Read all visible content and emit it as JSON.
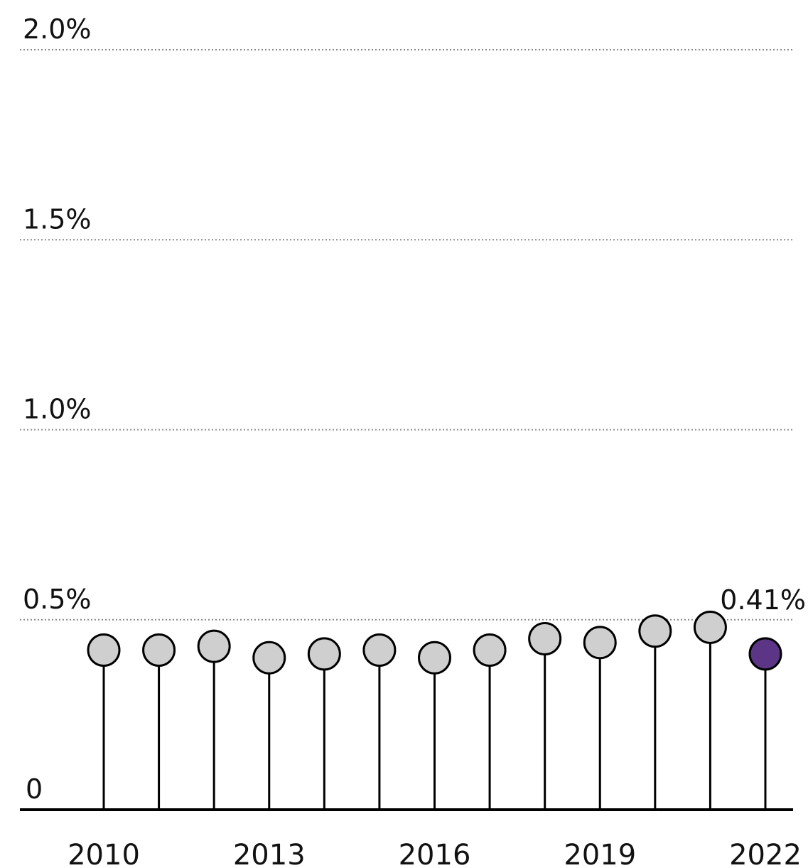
{
  "chart_data": {
    "type": "lollipop",
    "title": "",
    "xlabel": "",
    "ylabel": "",
    "x": [
      2010,
      2011,
      2012,
      2013,
      2014,
      2015,
      2016,
      2017,
      2018,
      2019,
      2020,
      2021,
      2022
    ],
    "values": [
      0.42,
      0.42,
      0.43,
      0.4,
      0.41,
      0.42,
      0.4,
      0.42,
      0.45,
      0.44,
      0.47,
      0.48,
      0.41
    ],
    "ylim": [
      0,
      2.0
    ],
    "y_ticks": [
      {
        "value": 0,
        "label": "0"
      },
      {
        "value": 0.5,
        "label": "0.5%"
      },
      {
        "value": 1.0,
        "label": "1.0%"
      },
      {
        "value": 1.5,
        "label": "1.5%"
      },
      {
        "value": 2.0,
        "label": "2.0%"
      }
    ],
    "x_tick_labels": [
      {
        "value": 2010,
        "label": "2010"
      },
      {
        "value": 2013,
        "label": "2013"
      },
      {
        "value": 2016,
        "label": "2016"
      },
      {
        "value": 2019,
        "label": "2019"
      },
      {
        "value": 2022,
        "label": "2022"
      }
    ],
    "highlight_index": 12,
    "highlight_label": "0.41%",
    "grid": true,
    "grid_style": "dotted",
    "legend": "none",
    "colors": {
      "default_dot": "#cfcfcf",
      "highlight_dot": "#5c3586",
      "stem": "#000000",
      "grid": "#8a8a8a"
    }
  }
}
